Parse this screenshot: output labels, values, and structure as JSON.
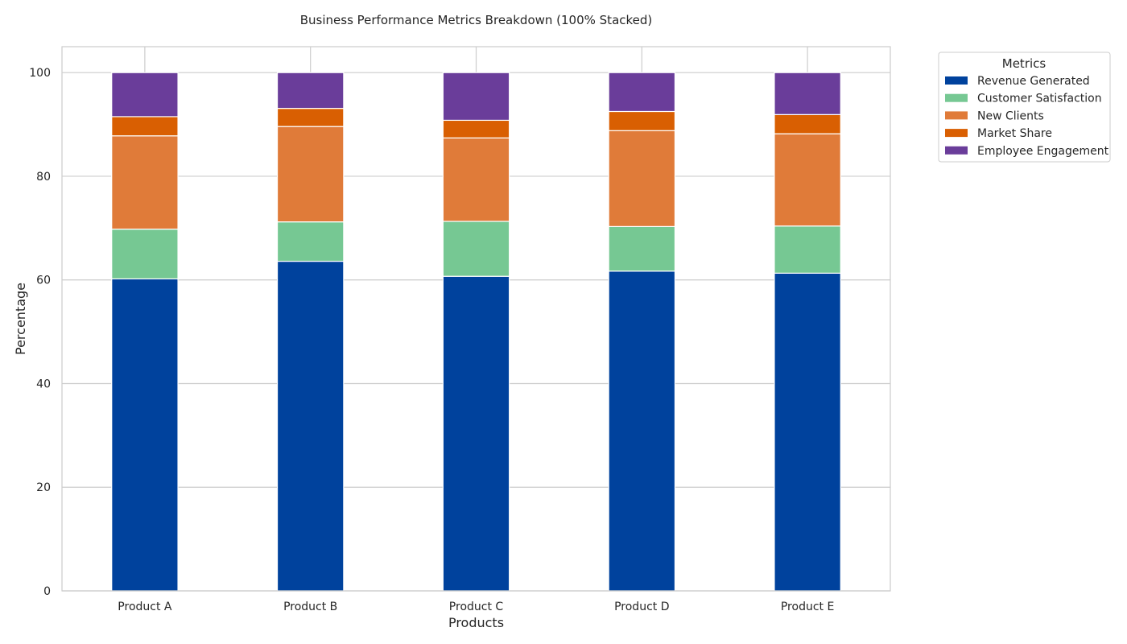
{
  "chart_data": {
    "type": "bar",
    "stacked": true,
    "title": "Business Performance Metrics Breakdown (100% Stacked)",
    "xlabel": "Products",
    "ylabel": "Percentage",
    "categories": [
      "Product A",
      "Product B",
      "Product C",
      "Product D",
      "Product E"
    ],
    "ylim": [
      0,
      105
    ],
    "yticks": [
      0,
      20,
      40,
      60,
      80,
      100
    ],
    "grid": true,
    "legend": {
      "title": "Metrics",
      "placement": "outside-top-right"
    },
    "series": [
      {
        "name": "Revenue Generated",
        "color": "#00429d",
        "values": [
          60.2,
          63.6,
          60.7,
          61.7,
          61.3
        ]
      },
      {
        "name": "Customer Satisfaction",
        "color": "#76c893",
        "values": [
          9.6,
          7.6,
          10.6,
          8.6,
          9.1
        ]
      },
      {
        "name": "New Clients",
        "color": "#e07b39",
        "values": [
          18.0,
          18.4,
          16.1,
          18.5,
          17.8
        ]
      },
      {
        "name": "Market Share",
        "color": "#d95f02",
        "values": [
          3.7,
          3.5,
          3.4,
          3.7,
          3.7
        ]
      },
      {
        "name": "Employee Engagement",
        "color": "#6a3d9a",
        "values": [
          8.5,
          6.9,
          9.2,
          7.5,
          8.1
        ]
      }
    ]
  }
}
